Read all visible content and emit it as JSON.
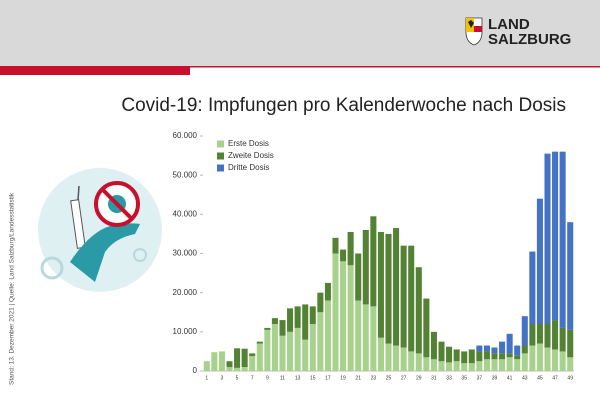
{
  "header": {
    "logo_line1": "LAND",
    "logo_line2": "SALZBURG"
  },
  "source_note": "Stand: 13. Dezember 2021 | Quelle: Land Salzburg/Landesstatistik",
  "chart_data": {
    "type": "stacked_bar",
    "title": "Covid-19: Impfungen pro Kalenderwoche nach Dosis",
    "categories": [
      "1",
      null,
      "3",
      null,
      "5",
      null,
      "7",
      null,
      "9",
      null,
      "11",
      null,
      "13",
      null,
      "15",
      null,
      "17",
      null,
      "19",
      null,
      "21",
      null,
      "23",
      null,
      "25",
      null,
      "27",
      null,
      "29",
      null,
      "31",
      null,
      "33",
      null,
      "35",
      null,
      "37",
      null,
      "39",
      null,
      "41",
      null,
      "43",
      null,
      "45",
      null,
      "47",
      null,
      "49"
    ],
    "series": [
      {
        "name": "Erste Dosis",
        "color": "#a9d18e",
        "values": [
          2500,
          4800,
          5000,
          1000,
          800,
          1000,
          3800,
          7000,
          10500,
          12000,
          9000,
          10000,
          11000,
          8000,
          12000,
          15000,
          18000,
          30000,
          28000,
          27000,
          18000,
          17000,
          16500,
          8500,
          7000,
          6500,
          6000,
          5000,
          4500,
          3500,
          3000,
          2500,
          2200,
          2500,
          2000,
          2000,
          2500,
          3000,
          3000,
          3000,
          3500,
          3000,
          4500,
          6500,
          7000,
          6000,
          5500,
          5000,
          3500
        ]
      },
      {
        "name": "Zweite Dosis",
        "color": "#548235",
        "values": [
          0,
          0,
          0,
          1500,
          5000,
          4700,
          700,
          500,
          500,
          1500,
          4000,
          6000,
          5500,
          9000,
          4500,
          5000,
          4500,
          4000,
          3000,
          8500,
          12000,
          19000,
          23000,
          27000,
          28000,
          30000,
          26000,
          27000,
          22000,
          15000,
          7000,
          5000,
          4000,
          3000,
          3000,
          3500,
          2500,
          2000,
          1500,
          1500,
          1000,
          1000,
          2000,
          5500,
          5000,
          6000,
          7500,
          6000,
          7000
        ]
      },
      {
        "name": "Dritte Dosis",
        "color": "#4472c4",
        "values": [
          0,
          0,
          0,
          0,
          0,
          0,
          0,
          0,
          0,
          0,
          0,
          0,
          0,
          0,
          0,
          0,
          0,
          0,
          0,
          0,
          0,
          0,
          0,
          0,
          0,
          0,
          0,
          0,
          0,
          0,
          0,
          0,
          0,
          0,
          0,
          0,
          1500,
          1500,
          1500,
          3000,
          5000,
          2500,
          7500,
          18500,
          32000,
          43500,
          43000,
          45000,
          27500
        ]
      }
    ],
    "ylim": [
      0,
      60000
    ],
    "yticks": [
      0,
      {
        "value": 10000,
        "label": "10.000"
      },
      {
        "value": 20000,
        "label": "20.000"
      },
      {
        "value": 30000,
        "label": "30.000"
      },
      {
        "value": 40000,
        "label": "40.000"
      },
      {
        "value": 50000,
        "label": "50.000"
      },
      {
        "value": 60000,
        "label": "60.000"
      }
    ],
    "grid": false,
    "legend": "top-left"
  }
}
